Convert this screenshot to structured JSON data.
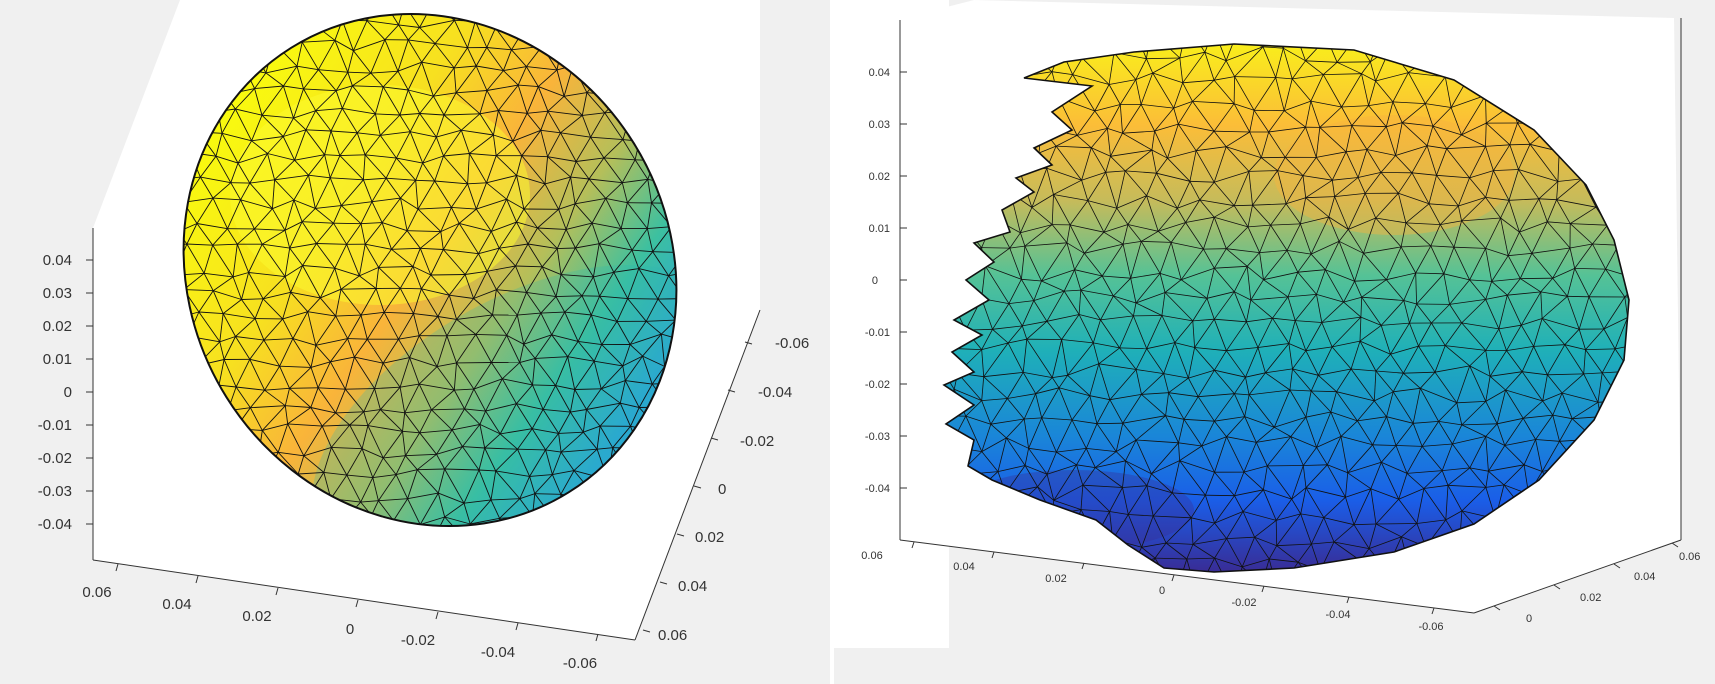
{
  "figure": {
    "panels": [
      {
        "id": "left",
        "z_ticks": [
          "0.04",
          "0.03",
          "0.02",
          "0.01",
          "0",
          "-0.01",
          "-0.02",
          "-0.03",
          "-0.04"
        ],
        "x_ticks": [
          "0.06",
          "0.04",
          "0.02",
          "0",
          "-0.02",
          "-0.04",
          "-0.06"
        ],
        "y_ticks": [
          "-0.06",
          "-0.04",
          "-0.02",
          "0",
          "0.02",
          "0.04",
          "0.06"
        ]
      },
      {
        "id": "right",
        "z_ticks": [
          "0.04",
          "0.03",
          "0.02",
          "0.01",
          "0",
          "-0.01",
          "-0.02",
          "-0.03",
          "-0.04"
        ],
        "x_ticks": [
          "0.06",
          "0.04",
          "0.02",
          "0",
          "-0.02",
          "-0.04",
          "-0.06"
        ],
        "y_ticks": [
          "0",
          "0.02",
          "0.04",
          "0.06"
        ]
      }
    ],
    "colors": {
      "figure_bg": "#f0f0f0",
      "axes_bg": "#ffffff",
      "high": "#f9fb0e",
      "upper": "#fbb232",
      "mid": "#8cbd66",
      "lower": "#23b4a8",
      "low": "#1e78e0",
      "bottom": "#3b2e9e"
    }
  }
}
